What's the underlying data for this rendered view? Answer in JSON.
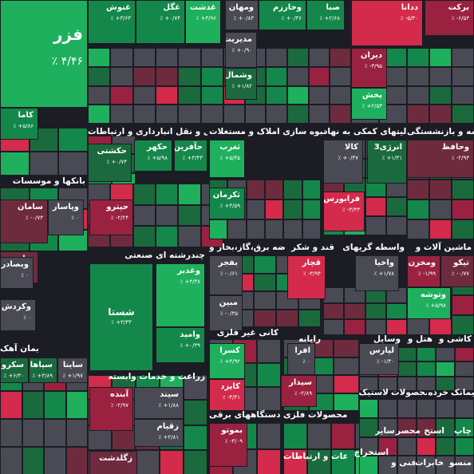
{
  "colors": {
    "bg": "#1b1c24",
    "green_strong": "#1eb05d",
    "green_mid": "#13884a",
    "green_dark": "#1a6a3e",
    "neutral": "#4a4a55",
    "red_dark": "#6e2b3e",
    "red_mid": "#9a2240",
    "red_strong": "#d42a4b"
  },
  "sectors": [
    {
      "name": "بانکها و موسسات"
    },
    {
      "name": "حمل و نقل انبارداری و ارتباطات"
    },
    {
      "name": "انبوه سازی املاک و مستغلات"
    },
    {
      "name": "فعالیتهای کمکی به نهاد"
    },
    {
      "name": "بیمه و بازنشستگی"
    },
    {
      "name": "چندرشته ای صنعتی"
    },
    {
      "name": "عرضه برق،گاز،بخار و"
    },
    {
      "name": "قند و شکر"
    },
    {
      "name": "واسطه گریهای"
    },
    {
      "name": "ماشین آلات و"
    },
    {
      "name": "سیمان آهک"
    },
    {
      "name": "کانی غیر فلزی"
    },
    {
      "name": "رایانه"
    },
    {
      "name": "وسایل"
    },
    {
      "name": "هتل و"
    },
    {
      "name": "کاشی و"
    },
    {
      "name": "زراعت و خدمات وابسته"
    },
    {
      "name": "دستگاههای برقی"
    },
    {
      "name": "محصولات فلزی"
    },
    {
      "name": "لاستیک"
    },
    {
      "name": "محصولات"
    },
    {
      "name": "خرده"
    },
    {
      "name": "پیمانک"
    },
    {
      "name": "چاپ"
    },
    {
      "name": "استخ"
    },
    {
      "name": "محصر"
    },
    {
      "name": "سایر"
    },
    {
      "name": "استخراج"
    },
    {
      "name": "اطلاعات و ارتباطات"
    },
    {
      "name": "فنی و"
    },
    {
      "name": "منسو"
    },
    {
      "name": "مخابرات"
    }
  ],
  "tiles": [
    {
      "name": "فزر",
      "val": "٪ ۴/۴۶"
    },
    {
      "name": "غنوش",
      "val": "٪ +۳/۶۳"
    },
    {
      "name": "غگل",
      "val": "٪ +۰/۷۴"
    },
    {
      "name": "غدشت",
      "val": "٪ +۳/۹۶"
    },
    {
      "name": "ومهان",
      "val": "٪ +۰/۸۳"
    },
    {
      "name": "وخارزم",
      "val": "٪ +۰/۳۶"
    },
    {
      "name": "صبا",
      "val": "٪ +۲/۶۸"
    },
    {
      "name": "ددانا",
      "val": "٪ -۵/۳۰"
    },
    {
      "name": "برکت",
      "val": "٪ -۶/۵۳"
    },
    {
      "name": "مدیریت",
      "val": "٪ +۰/۹۰"
    },
    {
      "name": "وشمال",
      "val": "٪ +۱/۸۲"
    },
    {
      "name": "دیران",
      "val": "٪ -۳/۹۵"
    },
    {
      "name": "پخش",
      "val": "٪ +۲/۵۳"
    },
    {
      "name": "کاما",
      "val": "٪ +۵/۸۶"
    },
    {
      "name": "حکشتی",
      "val": "٪ +۰/۷۴"
    },
    {
      "name": "حکهر",
      "val": "٪ +۵/۹۸"
    },
    {
      "name": "حآفرین",
      "val": "٪ +۳/۴۳"
    },
    {
      "name": "ثغرب",
      "val": "٪ +۵/۴۵"
    },
    {
      "name": "ثکرمان",
      "val": "٪ +۳/۵۹"
    },
    {
      "name": "کالا",
      "val": "٪ +۰/۴۷"
    },
    {
      "name": "انرژی3",
      "val": "٪ +۱/۳۱"
    },
    {
      "name": "وحافظ",
      "val": "٪ -۲/۹۳"
    },
    {
      "name": "سامان",
      "val": "٪ -۰/۷۳"
    },
    {
      "name": "وپاسار",
      "val": "٪ ۰"
    },
    {
      "name": "حپترو",
      "val": "٪ -۲/۲۴"
    },
    {
      "name": "فرابورس",
      "val": "٪ -۳/۴۳"
    },
    {
      "name": "وپارس",
      "val": "٪ -۰/۷۱"
    },
    {
      "name": "وبصادر",
      "val": "٪ ۰"
    },
    {
      "name": "وکردش",
      "val": "٪ ۰"
    },
    {
      "name": "شستا",
      "val": "٪ +۳/۳۳"
    },
    {
      "name": "وغدیر",
      "val": "٪ +۳/۳۸"
    },
    {
      "name": "وامید",
      "val": "٪ +۰/۳۹"
    },
    {
      "name": "بفجر",
      "val": "٪ -۰/۶۱"
    },
    {
      "name": "مبین",
      "val": "٪ -۰/۳۵"
    },
    {
      "name": "قچار",
      "val": "٪ -۳/۹۴"
    },
    {
      "name": "واخیا",
      "val": "٪ +۱/۷۸"
    },
    {
      "name": "ومخزن",
      "val": "٪ -۱/۹۹"
    },
    {
      "name": "تیکو",
      "val": "٪ -۰/۷۷"
    },
    {
      "name": "وتوشه",
      "val": "٪ +۵/۹۸"
    },
    {
      "name": "کسرا",
      "val": "٪ +۴/۹۲"
    },
    {
      "name": "کایزد",
      "val": "٪ -۴/۳۱"
    },
    {
      "name": "افرا",
      "val": "٪ ۰"
    },
    {
      "name": "سیدار",
      "val": "٪ -۲/۸۹"
    },
    {
      "name": "لپارس",
      "val": "٪ -۱/۳۰"
    },
    {
      "name": "ساینا",
      "val": "٪ +۱/۹۷"
    },
    {
      "name": "سپاها",
      "val": "٪ +۳/۸۹"
    },
    {
      "name": "سکرو",
      "val": "٪ +۶/۳۰"
    },
    {
      "name": "آبنده",
      "val": "٪ -۲/۹۷"
    },
    {
      "name": "سیند",
      "val": "٪ +۱/۸۸"
    },
    {
      "name": "زقیام",
      "val": "٪ +۲/۸۱"
    },
    {
      "name": "زگلدشت",
      "val": ""
    },
    {
      "name": "بموتو",
      "val": "٪ -۳/۰۹"
    }
  ]
}
